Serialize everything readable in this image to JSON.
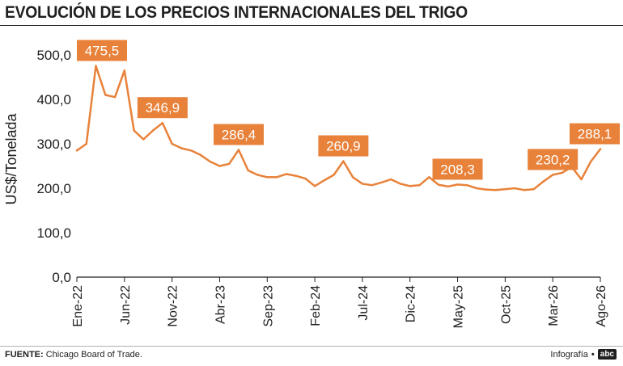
{
  "header": {
    "title": "EVOLUCIÓN DE LOS PRECIOS INTERNACIONALES DEL TRIGO"
  },
  "footer": {
    "source_label": "FUENTE:",
    "source_text": "Chicago Board of Trade.",
    "credit_text": "Infografía",
    "credit_logo": "abc"
  },
  "colors": {
    "line": "#e8823a",
    "label_bg": "#e8823a",
    "label_text": "#ffffff",
    "axis": "#1f1f1f",
    "grid": "#d8d8d8"
  },
  "chart_data": {
    "type": "line",
    "title": "EVOLUCIÓN DE LOS PRECIOS INTERNACIONALES DEL TRIGO",
    "xlabel": "",
    "ylabel": "US$/Tonelada",
    "ylim": [
      0,
      500
    ],
    "yticks": [
      0,
      100,
      200,
      300,
      400,
      500
    ],
    "ytick_labels": [
      "0,0",
      "100,0",
      "200,0",
      "300,0",
      "400,0",
      "500,0"
    ],
    "xlim": [
      "2022-01",
      "2026-08"
    ],
    "xticks": [
      "2022-01",
      "2022-06",
      "2022-11",
      "2023-04",
      "2023-09",
      "2024-02",
      "2024-07",
      "2024-12",
      "2025-05",
      "2025-10",
      "2026-03",
      "2026-08"
    ],
    "xtick_labels": [
      "Ene-22",
      "Jun-22",
      "Nov-22",
      "Abr-23",
      "Sep-23",
      "Feb-24",
      "Jul-24",
      "Dic-24",
      "May-25",
      "Oct-25",
      "Mar-26",
      "Ago-26"
    ],
    "grid": false,
    "series": [
      {
        "x": [
          "2022-01",
          "2022-02",
          "2022-03",
          "2022-04",
          "2022-05",
          "2022-06",
          "2022-07",
          "2022-08",
          "2022-09",
          "2022-10",
          "2022-11",
          "2022-12",
          "2023-01",
          "2023-02",
          "2023-03",
          "2023-04",
          "2023-05",
          "2023-06",
          "2023-07",
          "2023-08",
          "2023-09",
          "2023-10",
          "2023-11",
          "2023-12",
          "2024-01",
          "2024-02",
          "2024-03",
          "2024-04",
          "2024-05",
          "2024-06",
          "2024-07",
          "2024-08",
          "2024-09",
          "2024-10",
          "2024-11",
          "2024-12",
          "2025-01",
          "2025-02",
          "2025-03",
          "2025-04",
          "2025-05",
          "2025-06",
          "2025-07",
          "2025-08",
          "2025-09",
          "2025-10",
          "2025-11",
          "2025-12",
          "2026-01",
          "2026-02",
          "2026-03",
          "2026-04",
          "2026-05",
          "2026-06",
          "2026-07",
          "2026-08"
        ],
        "values": [
          285,
          300,
          475.5,
          410,
          405,
          465,
          330,
          310,
          330,
          346.9,
          300,
          290,
          285,
          275,
          260,
          250,
          255,
          286.4,
          240,
          230,
          225,
          225,
          232,
          228,
          222,
          205,
          218,
          230,
          260.9,
          225,
          210,
          207,
          213,
          220,
          210,
          205,
          207,
          225,
          208,
          204,
          208.3,
          207,
          200,
          197,
          196,
          198,
          200,
          196,
          198,
          215,
          230.2,
          235,
          248,
          220,
          260,
          288.1
        ]
      }
    ],
    "annotations": [
      {
        "x": "2022-03",
        "label": "475,5"
      },
      {
        "x": "2022-10",
        "label": "346,9"
      },
      {
        "x": "2023-06",
        "label": "286,4"
      },
      {
        "x": "2024-05",
        "label": "260,9"
      },
      {
        "x": "2025-05",
        "label": "208,3"
      },
      {
        "x": "2026-03",
        "label": "230,2"
      },
      {
        "x": "2026-08",
        "label": "288,1"
      }
    ]
  }
}
